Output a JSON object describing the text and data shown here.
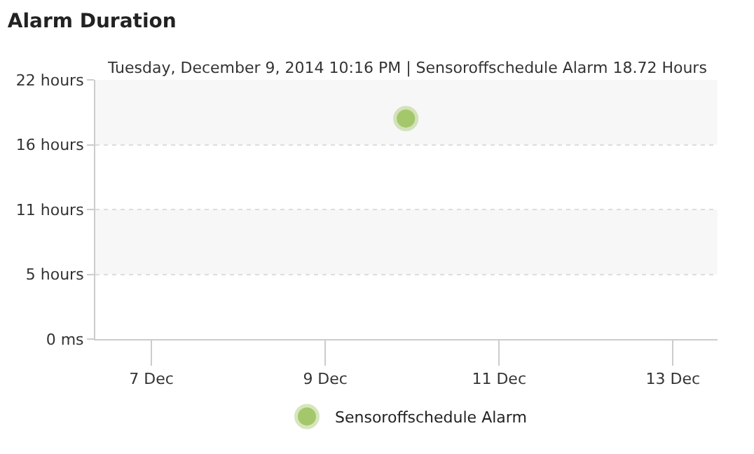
{
  "chart_data": {
    "type": "scatter",
    "title": "Alarm Duration",
    "subtitle": "Tuesday, December 9, 2014 10:16 PM | Sensoroffschedule Alarm 18.72 Hours",
    "x": [
      "2014-12-09T22:16"
    ],
    "series": [
      {
        "name": "Sensoroffschedule Alarm",
        "color": "#a5c76c",
        "values": [
          18.72
        ]
      }
    ],
    "xlim": [
      "2014-12-06T08:30",
      "2014-12-13T12:20"
    ],
    "xticks": [
      {
        "value": "2014-12-07",
        "label": "7 Dec"
      },
      {
        "value": "2014-12-09",
        "label": "9 Dec"
      },
      {
        "value": "2014-12-11",
        "label": "11 Dec"
      },
      {
        "value": "2014-12-13",
        "label": "13 Dec"
      }
    ],
    "ylim": [
      0,
      22
    ],
    "yticks": [
      {
        "value": 0,
        "label": "0 ms"
      },
      {
        "value": 5.5,
        "label": "5 hours"
      },
      {
        "value": 11,
        "label": "11 hours"
      },
      {
        "value": 16.5,
        "label": "16 hours"
      },
      {
        "value": 22,
        "label": "22 hours"
      }
    ],
    "grid": "y",
    "legend": "bottom",
    "marker": "circle"
  }
}
